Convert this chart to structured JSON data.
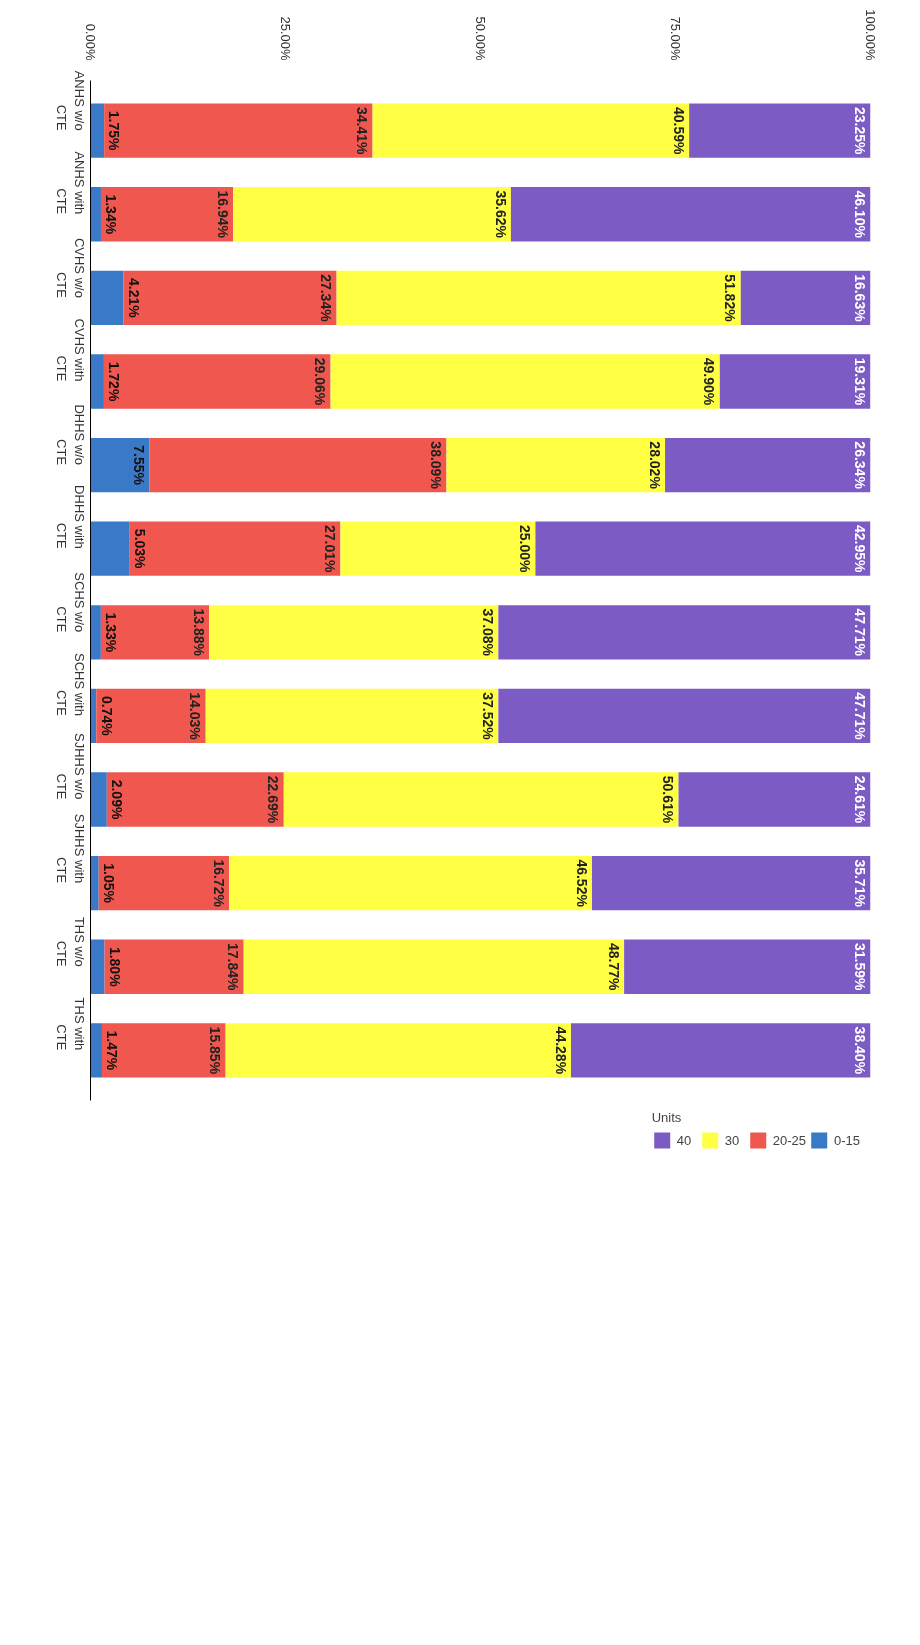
{
  "chart_data": {
    "type": "bar",
    "orientation": "horizontal",
    "stacked": true,
    "legend_title": "Units",
    "legend": "bottom",
    "categories": [
      "ANHS w/o CTE",
      "ANHS with CTE",
      "CVHS w/o CTE",
      "CVHS with CTE",
      "DHHS w/o CTE",
      "DHHS with CTE",
      "SCHS w/o CTE",
      "SCHS with CTE",
      "SJHHS w/o CTE",
      "SJHHS with CTE",
      "THS w/o CTE",
      "THS with CTE"
    ],
    "xlim": [
      0,
      100
    ],
    "xticks": [
      {
        "value": 0,
        "label": "0.00%"
      },
      {
        "value": 25,
        "label": "25.00%"
      },
      {
        "value": 50,
        "label": "50.00%"
      },
      {
        "value": 75,
        "label": "75.00%"
      },
      {
        "value": 100,
        "label": "100.00%"
      }
    ],
    "series": [
      {
        "name": "0-15",
        "color": "#3a78c8",
        "values": [
          1.75,
          1.34,
          4.21,
          1.72,
          7.55,
          5.03,
          1.33,
          0.74,
          2.09,
          1.05,
          1.8,
          1.47
        ],
        "value_labels": [
          "1.75%",
          "1.34%",
          "4.21%",
          "1.72%",
          "7.55%",
          "5.03%",
          "1.33%",
          "0.74%",
          "2.09%",
          "1.05%",
          "1.80%",
          "1.47%"
        ]
      },
      {
        "name": "20-25",
        "color": "#f0584f",
        "values": [
          34.41,
          16.94,
          27.34,
          29.06,
          38.09,
          27.01,
          13.88,
          14.03,
          22.69,
          16.72,
          17.84,
          15.85
        ],
        "value_labels": [
          "34.41%",
          "16.94%",
          "27.34%",
          "29.06%",
          "38.09%",
          "27.01%",
          "13.88%",
          "14.03%",
          "22.69%",
          "16.72%",
          "17.84%",
          "15.85%"
        ]
      },
      {
        "name": "30",
        "color": "#ffff44",
        "values": [
          40.59,
          35.62,
          51.82,
          49.9,
          28.02,
          25.0,
          37.08,
          37.52,
          50.61,
          46.52,
          48.77,
          44.28
        ],
        "value_labels": [
          "40.59%",
          "35.62%",
          "51.82%",
          "49.90%",
          "28.02%",
          "25.00%",
          "37.08%",
          "37.52%",
          "50.61%",
          "46.52%",
          "48.77%",
          "44.28%"
        ]
      },
      {
        "name": "40",
        "color": "#7c5cc4",
        "values": [
          23.25,
          46.1,
          16.63,
          19.31,
          26.34,
          42.95,
          47.71,
          47.71,
          24.61,
          35.71,
          31.59,
          38.4
        ],
        "value_labels": [
          "23.25%",
          "46.10%",
          "16.63%",
          "19.31%",
          "26.34%",
          "42.95%",
          "47.71%",
          "47.71%",
          "24.61%",
          "35.71%",
          "31.59%",
          "38.40%"
        ]
      }
    ]
  }
}
